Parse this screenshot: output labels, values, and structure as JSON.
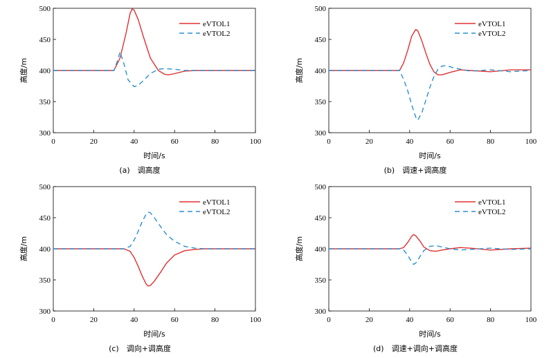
{
  "colors": {
    "evtol1": "#e03030",
    "evtol2": "#2a8fd0"
  },
  "chart_data": [
    {
      "type": "line",
      "caption": "(a)　调高度",
      "xlabel": "时间/s",
      "ylabel": "高度/m",
      "xlim": [
        0,
        100
      ],
      "ylim": [
        300,
        500
      ],
      "xticks": [
        0,
        20,
        40,
        60,
        80,
        100
      ],
      "yticks": [
        300,
        350,
        400,
        450,
        500
      ],
      "legend_position": "top-right",
      "series": [
        {
          "name": "eVTOL1",
          "style": "solid",
          "x": [
            0,
            30,
            33,
            36,
            38,
            39,
            40,
            42,
            45,
            48,
            52,
            55,
            57,
            60,
            65,
            70,
            80,
            100
          ],
          "y": [
            400,
            400,
            420,
            460,
            492,
            499,
            497,
            482,
            450,
            420,
            400,
            394,
            393,
            395,
            399,
            400,
            400,
            400
          ]
        },
        {
          "name": "eVTOL2",
          "style": "dashed",
          "x": [
            0,
            30,
            32,
            33,
            35,
            37,
            40,
            42,
            45,
            48,
            52,
            55,
            60,
            65,
            70,
            80,
            100
          ],
          "y": [
            400,
            400,
            418,
            430,
            410,
            385,
            374,
            376,
            385,
            395,
            402,
            403,
            402,
            400,
            400,
            400,
            400
          ]
        }
      ]
    },
    {
      "type": "line",
      "caption": "(b)　调速+调高度",
      "xlabel": "时间/s",
      "ylabel": "高度/m",
      "xlim": [
        0,
        100
      ],
      "ylim": [
        300,
        500
      ],
      "xticks": [
        0,
        20,
        40,
        60,
        80,
        100
      ],
      "yticks": [
        300,
        350,
        400,
        450,
        500
      ],
      "legend_position": "top-right",
      "series": [
        {
          "name": "eVTOL1",
          "style": "solid",
          "x": [
            0,
            35,
            37,
            39,
            41,
            43,
            44,
            46,
            48,
            50,
            52,
            54,
            56,
            60,
            65,
            70,
            80,
            90,
            100
          ],
          "y": [
            400,
            400,
            412,
            432,
            455,
            466,
            464,
            448,
            428,
            410,
            398,
            393,
            393,
            397,
            401,
            400,
            398,
            401,
            401
          ]
        },
        {
          "name": "eVTOL2",
          "style": "dashed",
          "x": [
            0,
            35,
            37,
            39,
            41,
            43,
            44,
            46,
            48,
            50,
            52,
            54,
            56,
            58,
            62,
            70,
            80,
            90,
            100
          ],
          "y": [
            400,
            400,
            386,
            368,
            345,
            325,
            320,
            332,
            352,
            373,
            390,
            402,
            407,
            408,
            404,
            399,
            401,
            398,
            400
          ]
        }
      ]
    },
    {
      "type": "line",
      "caption": "(c)　调向+调高度",
      "xlabel": "时间/s",
      "ylabel": "高度/m",
      "xlim": [
        0,
        100
      ],
      "ylim": [
        300,
        500
      ],
      "xticks": [
        0,
        20,
        40,
        60,
        80,
        100
      ],
      "yticks": [
        300,
        350,
        400,
        450,
        500
      ],
      "legend_position": "top-right",
      "series": [
        {
          "name": "eVTOL1",
          "style": "solid",
          "x": [
            0,
            35,
            38,
            40,
            42,
            44,
            46,
            47,
            48,
            50,
            53,
            56,
            60,
            65,
            70,
            75,
            80,
            100
          ],
          "y": [
            400,
            400,
            396,
            386,
            372,
            356,
            343,
            340,
            341,
            348,
            362,
            377,
            390,
            397,
            399,
            400,
            400,
            400
          ]
        },
        {
          "name": "eVTOL2",
          "style": "dashed",
          "x": [
            0,
            35,
            38,
            40,
            42,
            44,
            46,
            47,
            48,
            50,
            53,
            56,
            60,
            65,
            70,
            75,
            80,
            100
          ],
          "y": [
            400,
            400,
            404,
            414,
            428,
            444,
            456,
            459,
            458,
            450,
            436,
            423,
            412,
            404,
            401,
            400,
            400,
            400
          ]
        }
      ]
    },
    {
      "type": "line",
      "caption": "(d)　调速+调向+调高度",
      "xlabel": "时间/s",
      "ylabel": "高度/m",
      "xlim": [
        0,
        100
      ],
      "ylim": [
        300,
        500
      ],
      "xticks": [
        0,
        20,
        40,
        60,
        80,
        100
      ],
      "yticks": [
        300,
        350,
        400,
        450,
        500
      ],
      "legend_position": "top-right",
      "series": [
        {
          "name": "eVTOL1",
          "style": "solid",
          "x": [
            0,
            35,
            37,
            39,
            41,
            42,
            43,
            45,
            47,
            50,
            53,
            56,
            60,
            65,
            70,
            80,
            90,
            100
          ],
          "y": [
            400,
            400,
            402,
            410,
            420,
            423,
            421,
            413,
            403,
            397,
            396,
            398,
            400,
            402,
            401,
            398,
            400,
            401
          ]
        },
        {
          "name": "eVTOL2",
          "style": "dashed",
          "x": [
            0,
            35,
            37,
            39,
            41,
            42,
            43,
            45,
            47,
            50,
            53,
            56,
            60,
            65,
            70,
            80,
            90,
            100
          ],
          "y": [
            400,
            400,
            398,
            390,
            379,
            375,
            377,
            387,
            397,
            404,
            405,
            403,
            400,
            398,
            399,
            401,
            399,
            400
          ]
        }
      ]
    }
  ]
}
